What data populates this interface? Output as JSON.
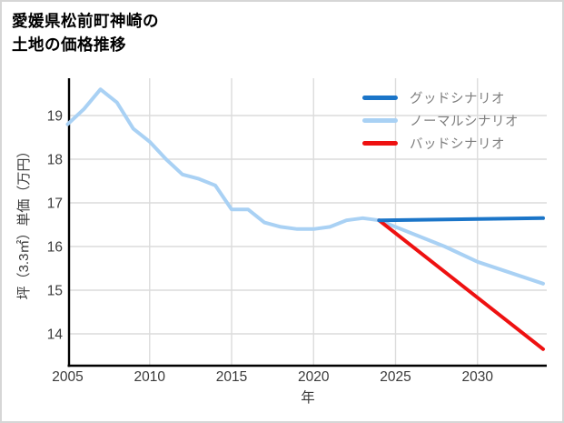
{
  "title": {
    "line1": "愛媛県松前町神崎の",
    "line2": "土地の価格推移"
  },
  "legend": {
    "items": [
      {
        "label": "グッドシナリオ",
        "color": "#1b75c8"
      },
      {
        "label": "ノーマルシナリオ",
        "color": "#a9d1f4"
      },
      {
        "label": "バッドシナリオ",
        "color": "#ee1111"
      }
    ]
  },
  "colors": {
    "grid": "#dcdcdc",
    "axis": "#000000",
    "tick_text": "#3a3a3a",
    "legend_text": "#7d7d7d",
    "border": "#d6d6d6",
    "background": "#ffffff"
  },
  "chart_data": {
    "type": "line",
    "title": "愛媛県松前町神崎の土地の価格推移",
    "xlabel": "年",
    "ylabel": "坪（3.3㎡）単価（万円）",
    "x_ticks": [
      2005,
      2010,
      2015,
      2020,
      2025,
      2030
    ],
    "y_ticks": [
      19,
      18,
      17,
      16,
      15,
      14
    ],
    "xlim": [
      2005,
      2034.3
    ],
    "ylim": [
      13.3,
      19.85
    ],
    "grid": true,
    "legend_position": "top-right",
    "series": [
      {
        "name": "グッドシナリオ",
        "color": "#1b75c8",
        "x": [
          2024,
          2034
        ],
        "values": [
          16.6,
          16.65
        ]
      },
      {
        "name": "ノーマルシナリオ",
        "color": "#a9d1f4",
        "x": [
          2005,
          2006,
          2007,
          2008,
          2009,
          2010,
          2011,
          2012,
          2013,
          2014,
          2015,
          2016,
          2017,
          2018,
          2019,
          2020,
          2021,
          2022,
          2023,
          2024,
          2026,
          2028,
          2030,
          2032,
          2034
        ],
        "values": [
          18.8,
          19.15,
          19.6,
          19.3,
          18.7,
          18.4,
          18.0,
          17.65,
          17.55,
          17.4,
          16.85,
          16.85,
          16.55,
          16.45,
          16.4,
          16.4,
          16.45,
          16.6,
          16.65,
          16.6,
          16.3,
          16.0,
          15.65,
          15.4,
          15.15
        ]
      },
      {
        "name": "バッドシナリオ",
        "color": "#ee1111",
        "x": [
          2024,
          2034
        ],
        "values": [
          16.6,
          13.65
        ]
      }
    ]
  }
}
